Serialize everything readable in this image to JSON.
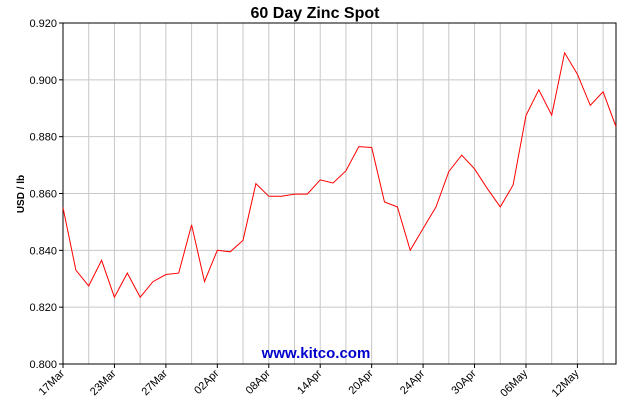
{
  "chart_data": {
    "type": "line",
    "title": "60 Day Zinc Spot",
    "ylabel": "USD / lb",
    "xlabel": "",
    "ylim": [
      0.8,
      0.92
    ],
    "yticks": [
      "0.800",
      "0.820",
      "0.840",
      "0.860",
      "0.880",
      "0.900",
      "0.920"
    ],
    "xtick_labels": [
      "17Mar",
      "23Mar",
      "27Mar",
      "02Apr",
      "08Apr",
      "14Apr",
      "20Apr",
      "24Apr",
      "30Apr",
      "06May",
      "12May"
    ],
    "xtick_index": [
      0,
      4,
      8,
      12,
      16,
      20,
      24,
      28,
      32,
      36,
      40
    ],
    "grid": true,
    "series": [
      {
        "color": "#ff0000",
        "values": [
          0.855,
          0.833,
          0.8275,
          0.8365,
          0.8235,
          0.832,
          0.8235,
          0.829,
          0.8315,
          0.832,
          0.849,
          0.829,
          0.84,
          0.8395,
          0.8435,
          0.8635,
          0.859,
          0.859,
          0.8598,
          0.8598,
          0.8648,
          0.8637,
          0.868,
          0.8765,
          0.8762,
          0.857,
          0.8553,
          0.84,
          0.8477,
          0.8553,
          0.8677,
          0.8735,
          0.8687,
          0.8617,
          0.8553,
          0.863,
          0.8875,
          0.8965,
          0.8876,
          0.9095,
          0.902,
          0.891,
          0.8958,
          0.8835
        ]
      }
    ]
  },
  "watermark": {
    "text": "www.kitco.com",
    "color": "#0000cc"
  }
}
